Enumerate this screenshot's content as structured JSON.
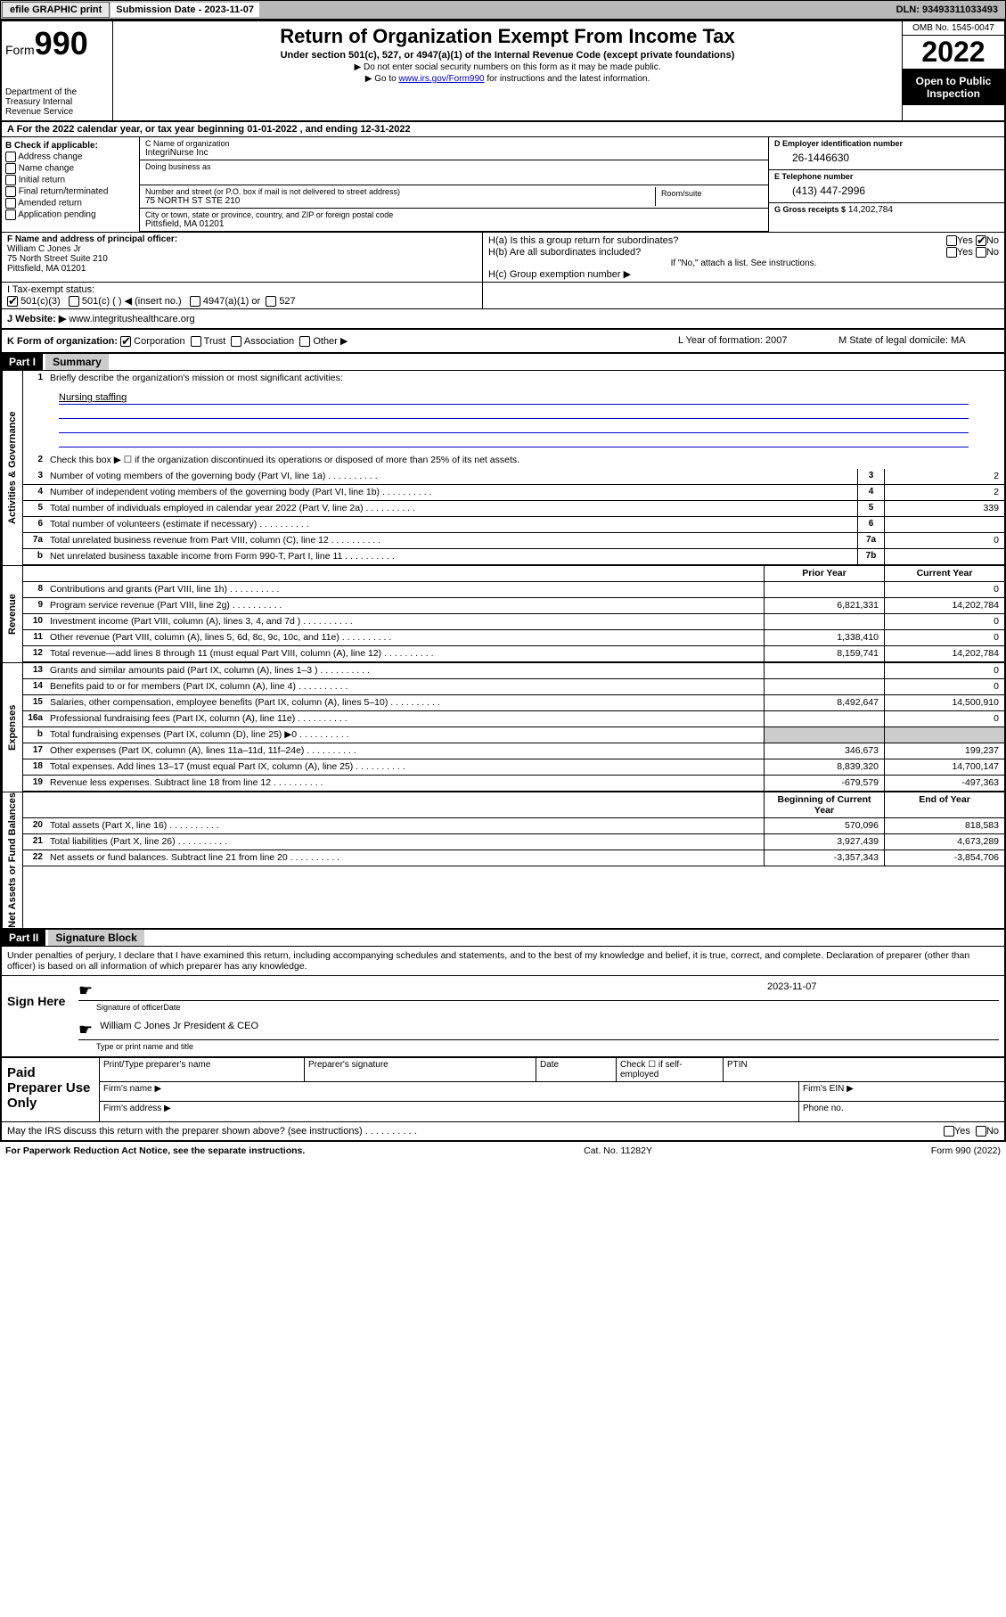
{
  "topbar": {
    "efile": "efile GRAPHIC print",
    "sub_label": "Submission Date - 2023-11-07",
    "dln": "DLN: 93493311033493"
  },
  "header": {
    "form": "Form",
    "form_num": "990",
    "title": "Return of Organization Exempt From Income Tax",
    "subtitle": "Under section 501(c), 527, or 4947(a)(1) of the Internal Revenue Code (except private foundations)",
    "note1": "▶ Do not enter social security numbers on this form as it may be made public.",
    "note2_pre": "▶ Go to ",
    "note2_link": "www.irs.gov/Form990",
    "note2_post": " for instructions and the latest information.",
    "dept": "Department of the Treasury\nInternal Revenue Service",
    "omb": "OMB No. 1545-0047",
    "year": "2022",
    "open": "Open to Public Inspection"
  },
  "row_a": "A For the 2022 calendar year, or tax year beginning 01-01-2022     , and ending 12-31-2022",
  "col_b": {
    "title": "B Check if applicable:",
    "items": [
      "Address change",
      "Name change",
      "Initial return",
      "Final return/terminated",
      "Amended return",
      "Application pending"
    ]
  },
  "col_c": {
    "name_lab": "C Name of organization",
    "name": "IntegriNurse Inc",
    "dba_lab": "Doing business as",
    "dba": "",
    "addr_lab": "Number and street (or P.O. box if mail is not delivered to street address)",
    "room_lab": "Room/suite",
    "addr": "75 NORTH ST STE 210",
    "city_lab": "City or town, state or province, country, and ZIP or foreign postal code",
    "city": "Pittsfield, MA  01201"
  },
  "col_d": {
    "d_lab": "D Employer identification number",
    "d_val": "26-1446630",
    "e_lab": "E Telephone number",
    "e_val": "(413) 447-2996",
    "g_lab": "G Gross receipts $",
    "g_val": "14,202,784"
  },
  "col_f": {
    "lab": "F Name and address of principal officer:",
    "name": "William C Jones Jr",
    "addr1": "75 North Street Suite 210",
    "addr2": "Pittsfield, MA  01201"
  },
  "col_h": {
    "ha": "H(a)  Is this a group return for subordinates?",
    "ha_ans": "No",
    "hb": "H(b)  Are all subordinates included?",
    "hb_note": "If \"No,\" attach a list. See instructions.",
    "hc": "H(c)  Group exemption number ▶"
  },
  "row_i": {
    "lab": "I   Tax-exempt status:",
    "opts": [
      "501(c)(3)",
      "501(c) (  ) ◀ (insert no.)",
      "4947(a)(1) or",
      "527"
    ]
  },
  "row_j": {
    "lab": "J   Website: ▶",
    "val": "www.integritushealthcare.org"
  },
  "row_k": "K Form of organization:",
  "row_k_opts": [
    "Corporation",
    "Trust",
    "Association",
    "Other ▶"
  ],
  "row_l": "L Year of formation: 2007",
  "row_m": "M State of legal domicile: MA",
  "part1": {
    "label": "Part I",
    "title": "Summary"
  },
  "vtabs": {
    "gov": "Activities & Governance",
    "rev": "Revenue",
    "exp": "Expenses",
    "net": "Net Assets or Fund Balances"
  },
  "q1": "Briefly describe the organization's mission or most significant activities:",
  "q1_ans": "Nursing staffing",
  "q2": "Check this box ▶ ☐  if the organization discontinued its operations or disposed of more than 25% of its net assets.",
  "rows_gov": [
    {
      "n": "3",
      "d": "Number of voting members of the governing body (Part VI, line 1a)",
      "b": "3",
      "v": "2"
    },
    {
      "n": "4",
      "d": "Number of independent voting members of the governing body (Part VI, line 1b)",
      "b": "4",
      "v": "2"
    },
    {
      "n": "5",
      "d": "Total number of individuals employed in calendar year 2022 (Part V, line 2a)",
      "b": "5",
      "v": "339"
    },
    {
      "n": "6",
      "d": "Total number of volunteers (estimate if necessary)",
      "b": "6",
      "v": ""
    },
    {
      "n": "7a",
      "d": "Total unrelated business revenue from Part VIII, column (C), line 12",
      "b": "7a",
      "v": "0"
    },
    {
      "n": "b",
      "d": "Net unrelated business taxable income from Form 990-T, Part I, line 11",
      "b": "7b",
      "v": ""
    }
  ],
  "hdr_prior": "Prior Year",
  "hdr_current": "Current Year",
  "rows_rev": [
    {
      "n": "8",
      "d": "Contributions and grants (Part VIII, line 1h)",
      "p": "",
      "c": "0"
    },
    {
      "n": "9",
      "d": "Program service revenue (Part VIII, line 2g)",
      "p": "6,821,331",
      "c": "14,202,784"
    },
    {
      "n": "10",
      "d": "Investment income (Part VIII, column (A), lines 3, 4, and 7d )",
      "p": "",
      "c": "0"
    },
    {
      "n": "11",
      "d": "Other revenue (Part VIII, column (A), lines 5, 6d, 8c, 9c, 10c, and 11e)",
      "p": "1,338,410",
      "c": "0"
    },
    {
      "n": "12",
      "d": "Total revenue—add lines 8 through 11 (must equal Part VIII, column (A), line 12)",
      "p": "8,159,741",
      "c": "14,202,784"
    }
  ],
  "rows_exp": [
    {
      "n": "13",
      "d": "Grants and similar amounts paid (Part IX, column (A), lines 1–3 )",
      "p": "",
      "c": "0"
    },
    {
      "n": "14",
      "d": "Benefits paid to or for members (Part IX, column (A), line 4)",
      "p": "",
      "c": "0"
    },
    {
      "n": "15",
      "d": "Salaries, other compensation, employee benefits (Part IX, column (A), lines 5–10)",
      "p": "8,492,647",
      "c": "14,500,910"
    },
    {
      "n": "16a",
      "d": "Professional fundraising fees (Part IX, column (A), line 11e)",
      "p": "",
      "c": "0"
    },
    {
      "n": "b",
      "d": "Total fundraising expenses (Part IX, column (D), line 25) ▶0",
      "p": "shade",
      "c": "shade"
    },
    {
      "n": "17",
      "d": "Other expenses (Part IX, column (A), lines 11a–11d, 11f–24e)",
      "p": "346,673",
      "c": "199,237"
    },
    {
      "n": "18",
      "d": "Total expenses. Add lines 13–17 (must equal Part IX, column (A), line 25)",
      "p": "8,839,320",
      "c": "14,700,147"
    },
    {
      "n": "19",
      "d": "Revenue less expenses. Subtract line 18 from line 12",
      "p": "-679,579",
      "c": "-497,363"
    }
  ],
  "hdr_begin": "Beginning of Current Year",
  "hdr_end": "End of Year",
  "rows_net": [
    {
      "n": "20",
      "d": "Total assets (Part X, line 16)",
      "p": "570,096",
      "c": "818,583"
    },
    {
      "n": "21",
      "d": "Total liabilities (Part X, line 26)",
      "p": "3,927,439",
      "c": "4,673,289"
    },
    {
      "n": "22",
      "d": "Net assets or fund balances. Subtract line 21 from line 20",
      "p": "-3,357,343",
      "c": "-3,854,706"
    }
  ],
  "part2": {
    "label": "Part II",
    "title": "Signature Block"
  },
  "sig_intro": "Under penalties of perjury, I declare that I have examined this return, including accompanying schedules and statements, and to the best of my knowledge and belief, it is true, correct, and complete. Declaration of preparer (other than officer) is based on all information of which preparer has any knowledge.",
  "sign_here": "Sign Here",
  "sig_officer": "Signature of officer",
  "sig_date": "2023-11-07",
  "sig_date_lab": "Date",
  "sig_name": "William C Jones Jr President & CEO",
  "sig_name_lab": "Type or print name and title",
  "paid": {
    "title": "Paid Preparer Use Only",
    "h1": "Print/Type preparer's name",
    "h2": "Preparer's signature",
    "h3": "Date",
    "h4": "Check ☐ if self-employed",
    "h5": "PTIN",
    "firm_name": "Firm's name    ▶",
    "firm_ein": "Firm's EIN ▶",
    "firm_addr": "Firm's address ▶",
    "phone": "Phone no."
  },
  "irs_discuss": "May the IRS discuss this return with the preparer shown above? (see instructions)",
  "footer": {
    "left": "For Paperwork Reduction Act Notice, see the separate instructions.",
    "mid": "Cat. No. 11282Y",
    "right": "Form 990 (2022)"
  }
}
